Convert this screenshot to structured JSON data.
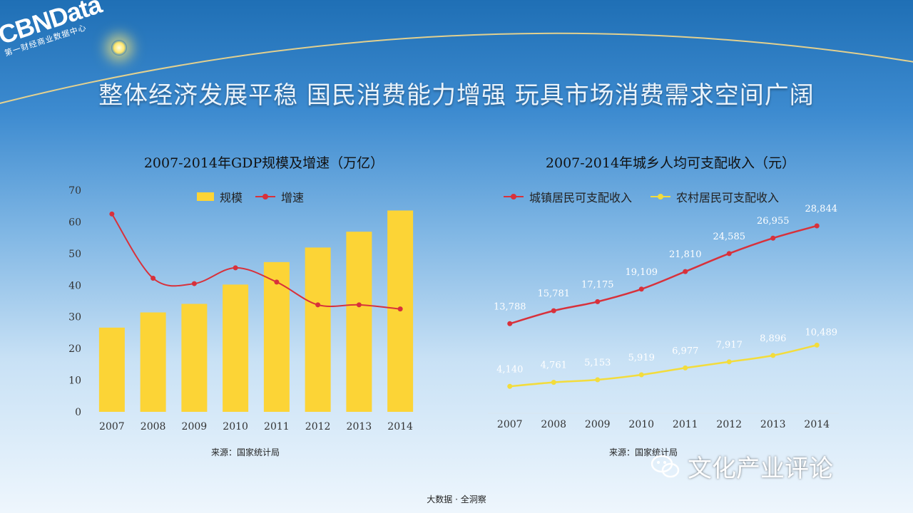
{
  "brand": {
    "name": "CBNData",
    "subtitle": "第一财经商业数据中心"
  },
  "title": "整体经济发展平稳 国民消费能力增强 玩具市场消费需求空间广阔",
  "chart_data": [
    {
      "type": "bar",
      "title": "2007-2014年GDP规模及增速（万亿）",
      "categories": [
        "2007",
        "2008",
        "2009",
        "2010",
        "2011",
        "2012",
        "2013",
        "2014"
      ],
      "ylim": [
        0,
        70
      ],
      "yticks": [
        0,
        10,
        20,
        30,
        40,
        50,
        60,
        70
      ],
      "legend_position": "top",
      "series": [
        {
          "name": "规模",
          "kind": "bar",
          "color": "#fcd436",
          "values": [
            26.6,
            31.4,
            34.1,
            40.2,
            47.3,
            51.9,
            56.9,
            63.6
          ]
        },
        {
          "name": "增速",
          "kind": "line",
          "color": "#d8313b",
          "values": [
            62.5,
            42.2,
            40.5,
            45.5,
            41.0,
            33.8,
            33.8,
            32.5
          ]
        }
      ],
      "source": "来源：国家统计局"
    },
    {
      "type": "line",
      "title": "2007-2014年城乡人均可支配收入（元）",
      "categories": [
        "2007",
        "2008",
        "2009",
        "2010",
        "2011",
        "2012",
        "2013",
        "2014"
      ],
      "ylim": [
        0,
        34000
      ],
      "legend_position": "top",
      "series": [
        {
          "name": "城镇居民可支配收入",
          "color": "#d8313b",
          "values": [
            13788,
            15781,
            17175,
            19109,
            21810,
            24585,
            26955,
            28844
          ],
          "labels": [
            "13,788",
            "15,781",
            "17,175",
            "19,109",
            "21,810",
            "24,585",
            "26,955",
            "28,844"
          ]
        },
        {
          "name": "农村居民可支配收入",
          "color": "#f3dc3c",
          "values": [
            4140,
            4761,
            5153,
            5919,
            6977,
            7917,
            8896,
            10489
          ],
          "labels": [
            "4,140",
            "4,761",
            "5,153",
            "5,919",
            "6,977",
            "7,917",
            "8,896",
            "10,489"
          ]
        }
      ],
      "source": "来源：国家统计局"
    }
  ],
  "footer": "大数据 · 全洞察",
  "watermark": "文化产业评论"
}
